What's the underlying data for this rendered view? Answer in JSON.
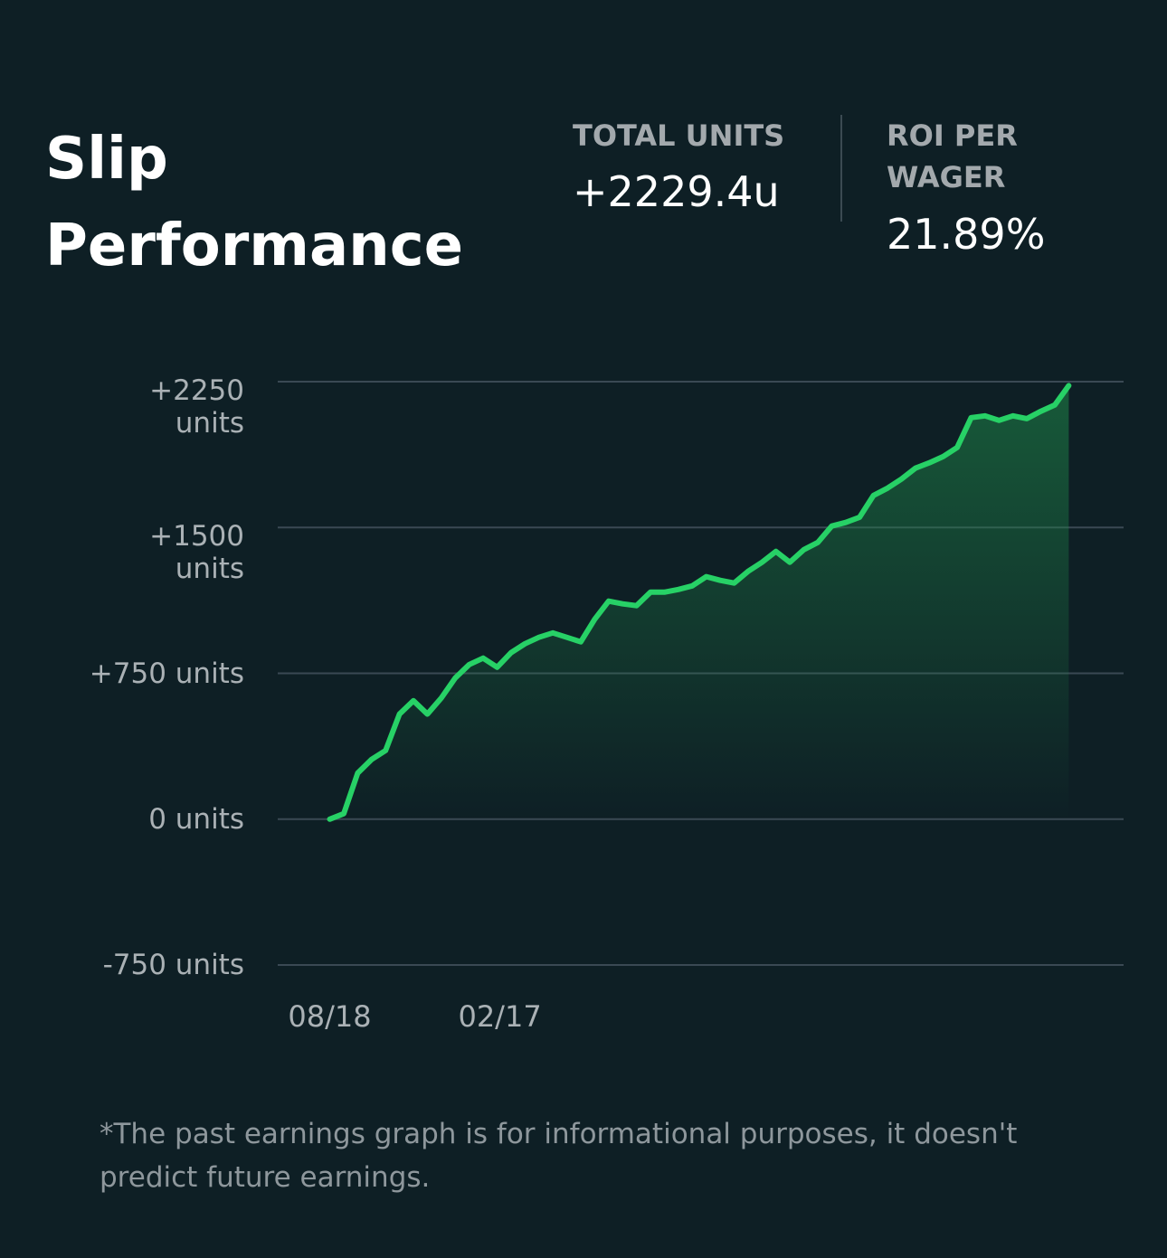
{
  "chart_data": {
    "type": "line",
    "title": "Slip Performance",
    "stats": [
      {
        "label": "TOTAL UNITS",
        "value": "+2229.4u"
      },
      {
        "label": "ROI PER WAGER",
        "value": "21.89%"
      }
    ],
    "footnote": "*The past earnings graph is for informational purposes, it doesn't predict future earnings.",
    "x": [
      0,
      15,
      30,
      45,
      60,
      75,
      90,
      105,
      120,
      135,
      150,
      165,
      180,
      195,
      210,
      225,
      240,
      255,
      270,
      285,
      300,
      315,
      330,
      345,
      360,
      375,
      390,
      405,
      420,
      435,
      450,
      465,
      480,
      495,
      510,
      525,
      540,
      555,
      570,
      585,
      600,
      615,
      630,
      645,
      660,
      675,
      690,
      705,
      720,
      735,
      750,
      765,
      780,
      795
    ],
    "series": [
      {
        "name": "Units",
        "color": "#27d166",
        "values": [
          0,
          28,
          237,
          307,
          353,
          540,
          609,
          540,
          623,
          726,
          795,
          828,
          781,
          856,
          902,
          935,
          958,
          935,
          912,
          1028,
          1121,
          1107,
          1098,
          1167,
          1167,
          1181,
          1200,
          1247,
          1228,
          1214,
          1274,
          1321,
          1377,
          1321,
          1386,
          1423,
          1507,
          1526,
          1553,
          1665,
          1702,
          1749,
          1805,
          1833,
          1865,
          1912,
          2065,
          2074,
          2051,
          2074,
          2060,
          2098,
          2130,
          2229.4
        ]
      }
    ],
    "xlim": [
      -56,
      854
    ],
    "xticks": [
      {
        "value": 0,
        "label": "08/18"
      },
      {
        "value": 183,
        "label": "02/17"
      }
    ],
    "ylim": [
      -750,
      2250
    ],
    "yticks": [
      {
        "value": -750,
        "label": "-750 units"
      },
      {
        "value": 0,
        "label": "0 units"
      },
      {
        "value": 750,
        "label": "+750 units"
      },
      {
        "value": 1500,
        "label": "+1500 units"
      },
      {
        "value": 2250,
        "label": "+2250 units"
      }
    ],
    "grid": true
  }
}
